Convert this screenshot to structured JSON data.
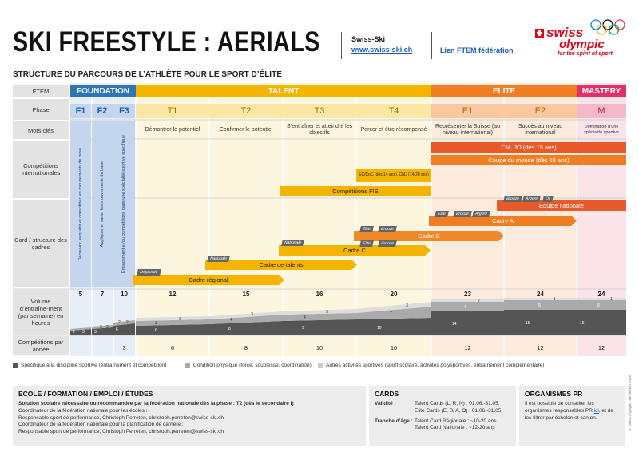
{
  "header": {
    "title": "SKI FREESTYLE : AERIALS",
    "org": "Swiss-Ski",
    "org_link": "www.swiss-ski.ch",
    "ftem_link": "Lien FTEM fédération",
    "subtitle": "STRUCTURE DU PARCOURS DE L’ATHLÈTE POUR LE SPORT D’ÉLITE"
  },
  "logo": {
    "swiss": "swiss",
    "olympic": "olympic",
    "tagline": "for the spirit of sport"
  },
  "row_labels": {
    "ftem": "FTEM",
    "phase": "Phase",
    "keywords": "Mots-clés",
    "competitions": "Compétitions internationales",
    "card": "Card / structure des cadres",
    "volume": "Volume d’entraîne-ment (par semaine) en heures",
    "comp_per_year": "Compétitions par année"
  },
  "ftem_groups": [
    {
      "label": "FOUNDATION",
      "color": "#2e74b8"
    },
    {
      "label": "TALENT",
      "color": "#f5b400"
    },
    {
      "label": "ELITE",
      "color": "#ef7d22"
    },
    {
      "label": "MASTERY",
      "color": "#e2306a"
    }
  ],
  "phases": [
    "F1",
    "F2",
    "F3",
    "T1",
    "T2",
    "T3",
    "T4",
    "E1",
    "E2",
    "M"
  ],
  "vertical_keywords": [
    "Découvrir, acquérir et consolider les mouvements de base",
    "Appliquer et varier les mouvements de base",
    "Engagement et/ou compétitions dans une spécialité sportive spécifique"
  ],
  "keywords": [
    "Démontrer le potentiel",
    "Confirmer le potentiel",
    "S’entraîner et atteindre les objectifs",
    "Percer et être récompensé",
    "Représenter la Suisse (au niveau international)",
    "Succès au niveau international",
    "Domination d’une spécialité sportive"
  ],
  "competition_bars": [
    "CM, JO (dès 15 ans)",
    "Coupe du monde (dès 15 ans)",
    "EC/CoC (dès 14 ans), CMJ (14-20 ans)",
    "Compétitions FIS"
  ],
  "cadre_bars": [
    "Equipe nationale",
    "Cadre A",
    "Cadre B",
    "Cadre C",
    "Cadre de talents",
    "Cadre régional"
  ],
  "card_tags": {
    "regionale": "Régionale",
    "nationale": "Nationale",
    "elite": "Elite",
    "bronze": "Bronze",
    "argent": "Argent",
    "or": "Or"
  },
  "volume_totals": [
    "5",
    "7",
    "10",
    "12",
    "15",
    "16",
    "20",
    "23",
    "24",
    "24"
  ],
  "volume_segments": {
    "f1": [
      "2",
      "3"
    ],
    "f2": [
      "3",
      "2",
      "2"
    ],
    "f3": [
      "6",
      "2",
      "2"
    ],
    "t1": [
      "6",
      "3",
      "3"
    ],
    "t2": [
      "8",
      "4",
      "3"
    ],
    "t3": [
      "9",
      "4",
      "3"
    ],
    "t4": [
      "10",
      "7",
      "3"
    ],
    "e1": [
      "14",
      "7",
      "2"
    ],
    "e2": [
      "15",
      "8",
      "1"
    ],
    "m": [
      "15",
      "8",
      "1"
    ]
  },
  "competitions_per_year": [
    "3",
    "6",
    "8",
    "10",
    "10",
    "12",
    "12",
    "12"
  ],
  "legend": [
    "Spécifique à la discipline sportive (entraînement et compétition)",
    "Condition physique (force, souplesse, coordination)",
    "Autres activités sportives (sport scolaire, activités polysportives, entraînement complémentaire)"
  ],
  "bottom": {
    "education": {
      "title": "ECOLE / FORMATION / EMPLOI / ÉTUDES",
      "line1": "Solution scolaire nécessaire ou recommandée par la fédération nationale dès la phase : T2 (dès le secondaire I)",
      "line2": "Coordinateur de la fédération nationale pour les écoles :",
      "line3": "Responsable sport de performance, Christoph Perreten, christoph.perreten@swiss-ski.ch",
      "line4": "Coordinateur de la fédération nationale pour la planification de carrière :",
      "line5": "Responsable sport de performance, Christoph Perreten, christoph.perreten@swiss-ski.ch"
    },
    "cards": {
      "title": "CARDS",
      "validity_label": "Validité :",
      "talent_cards": "Talent Cards (L, R, N) : 01.06.-31.05.",
      "elite_cards": "Elite Cards (E, B, A, O) : 01.06.-31.05.",
      "age_label": "Tranche d’âge :",
      "age_regional": "Talent Card Régionale : ~10-20 ans",
      "age_national": "Talent Card Nationale : ~12-20 ans"
    },
    "pr": {
      "title": "ORGANISMES PR",
      "text1": "Il est possible de consulter les organismes responsables PR",
      "link": "ici",
      "text2": ", et de les filtrer par échelon et canton."
    }
  },
  "copyright": "© Swiss Olympic, 1re édition 2018"
}
